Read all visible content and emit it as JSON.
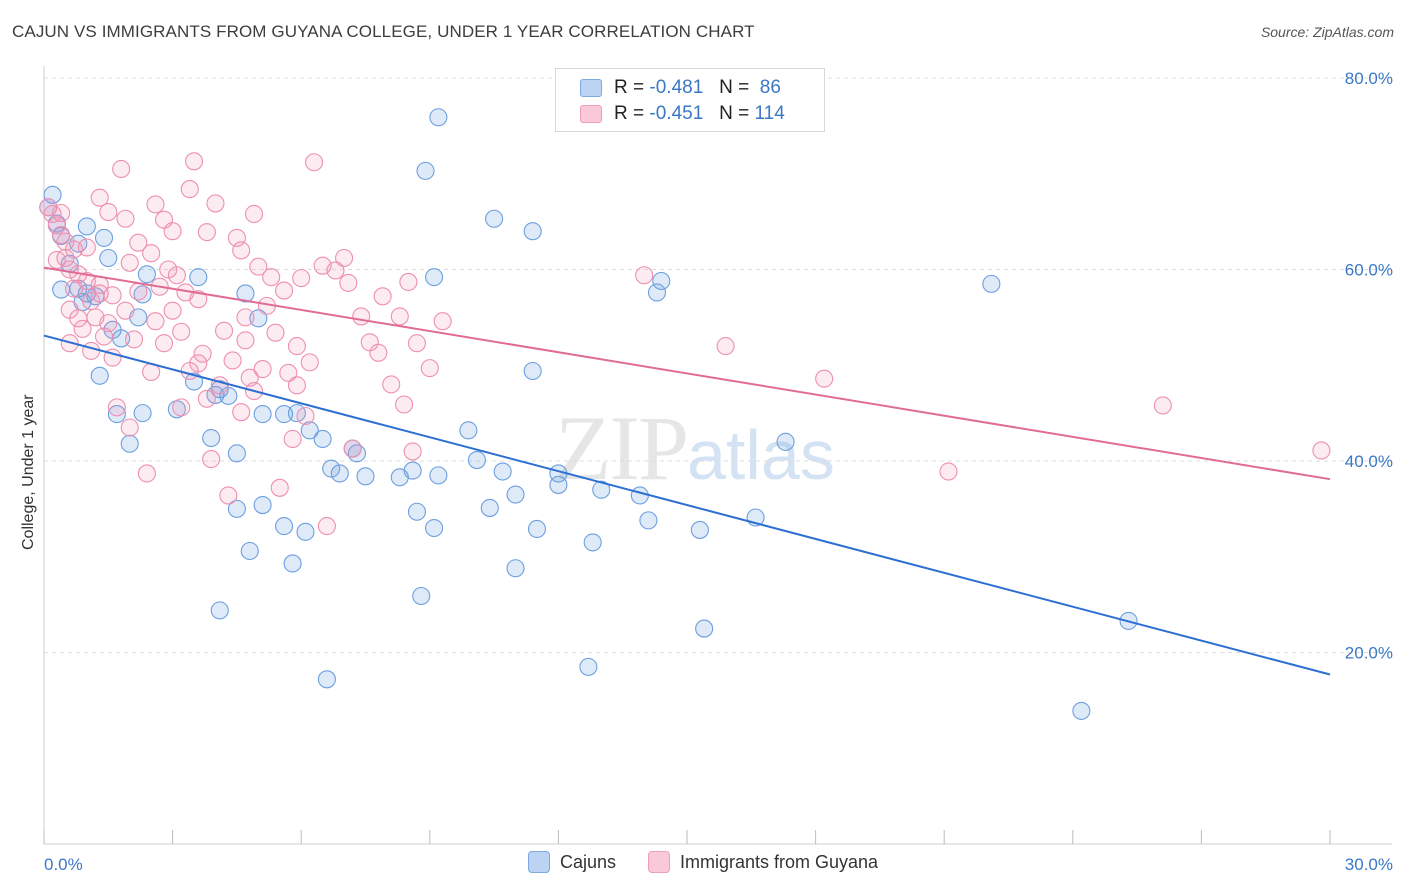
{
  "title": "CAJUN VS IMMIGRANTS FROM GUYANA COLLEGE, UNDER 1 YEAR CORRELATION CHART",
  "source": "Source: ZipAtlas.com",
  "watermark_zip": "ZIP",
  "watermark_atlas": "atlas",
  "legend": {
    "series1": {
      "r_label": "R = ",
      "r_value": "-0.481",
      "n_label": "N = ",
      "n_value": "86"
    },
    "series2": {
      "r_label": "R = ",
      "r_value": "-0.451",
      "n_label": "N = ",
      "n_value": "114"
    }
  },
  "colors": {
    "cajuns": "#6c9fdf",
    "cajuns_line": "#2d6fd1",
    "guyana": "#ee8fb0",
    "guyana_line": "#e06b96",
    "grid": "#dcdcdc",
    "tick": "#3a78c7"
  },
  "chart_data": {
    "type": "scatter",
    "title": "CAJUN VS IMMIGRANTS FROM GUYANA COLLEGE, UNDER 1 YEAR CORRELATION CHART",
    "xlabel": "",
    "ylabel": "College, Under 1 year",
    "xlim": [
      0,
      30
    ],
    "ylim": [
      0,
      80
    ],
    "x_tick_labels": [
      "0.0%",
      "30.0%"
    ],
    "y_tick_labels": [
      "20.0%",
      "40.0%",
      "60.0%",
      "80.0%"
    ],
    "y_ticks": [
      20,
      40,
      60,
      80
    ],
    "grid": true,
    "legend_position": "top-center",
    "series": [
      {
        "name": "Cajuns",
        "color": "#6c9fdf",
        "trend": {
          "x": [
            0,
            30
          ],
          "y": [
            53.1,
            17.7
          ]
        },
        "points": [
          [
            0.2,
            67.8
          ],
          [
            0.1,
            66.5
          ],
          [
            0.3,
            64.8
          ],
          [
            0.4,
            63.5
          ],
          [
            1.0,
            64.5
          ],
          [
            1.4,
            63.3
          ],
          [
            0.8,
            62.7
          ],
          [
            1.5,
            61.2
          ],
          [
            0.6,
            60.6
          ],
          [
            2.4,
            59.5
          ],
          [
            0.4,
            57.9
          ],
          [
            0.8,
            58.0
          ],
          [
            1.0,
            57.5
          ],
          [
            1.2,
            57.2
          ],
          [
            2.3,
            57.4
          ],
          [
            0.9,
            56.6
          ],
          [
            2.2,
            55.0
          ],
          [
            1.6,
            53.7
          ],
          [
            1.8,
            52.8
          ],
          [
            4.7,
            57.5
          ],
          [
            3.6,
            59.2
          ],
          [
            5.0,
            54.9
          ],
          [
            3.5,
            48.3
          ],
          [
            1.3,
            48.9
          ],
          [
            4.0,
            46.9
          ],
          [
            4.3,
            46.8
          ],
          [
            4.1,
            47.5
          ],
          [
            3.1,
            45.4
          ],
          [
            2.3,
            45.0
          ],
          [
            1.7,
            44.9
          ],
          [
            3.9,
            42.4
          ],
          [
            5.1,
            44.9
          ],
          [
            5.6,
            44.9
          ],
          [
            5.9,
            45.0
          ],
          [
            6.2,
            43.2
          ],
          [
            6.5,
            42.3
          ],
          [
            2.0,
            41.8
          ],
          [
            4.5,
            40.8
          ],
          [
            7.2,
            41.3
          ],
          [
            7.3,
            40.8
          ],
          [
            6.7,
            39.2
          ],
          [
            6.9,
            38.7
          ],
          [
            7.5,
            38.4
          ],
          [
            8.3,
            38.3
          ],
          [
            9.2,
            38.5
          ],
          [
            8.6,
            39.0
          ],
          [
            10.1,
            40.1
          ],
          [
            10.7,
            38.9
          ],
          [
            12.0,
            38.7
          ],
          [
            12.0,
            37.5
          ],
          [
            13.0,
            37.0
          ],
          [
            11.0,
            36.5
          ],
          [
            13.9,
            36.4
          ],
          [
            5.1,
            35.4
          ],
          [
            4.5,
            35.0
          ],
          [
            8.7,
            34.7
          ],
          [
            9.1,
            33.0
          ],
          [
            10.4,
            35.1
          ],
          [
            6.1,
            32.6
          ],
          [
            5.6,
            33.2
          ],
          [
            4.8,
            30.6
          ],
          [
            5.8,
            29.3
          ],
          [
            11.5,
            32.9
          ],
          [
            12.8,
            31.5
          ],
          [
            14.1,
            33.8
          ],
          [
            15.3,
            32.8
          ],
          [
            16.6,
            34.1
          ],
          [
            11.0,
            28.8
          ],
          [
            8.8,
            25.9
          ],
          [
            4.1,
            24.4
          ],
          [
            15.4,
            22.5
          ],
          [
            12.7,
            18.5
          ],
          [
            6.6,
            17.2
          ],
          [
            24.2,
            13.9
          ],
          [
            25.3,
            23.3
          ],
          [
            22.1,
            58.5
          ],
          [
            17.3,
            42.0
          ],
          [
            14.4,
            58.8
          ],
          [
            11.4,
            64.0
          ],
          [
            10.5,
            65.3
          ],
          [
            9.1,
            59.2
          ],
          [
            8.9,
            70.3
          ],
          [
            9.2,
            75.9
          ],
          [
            9.9,
            43.2
          ],
          [
            11.4,
            49.4
          ],
          [
            14.3,
            57.6
          ]
        ]
      },
      {
        "name": "Immigrants from Guyana",
        "color": "#ee8fb0",
        "trend": {
          "x": [
            0,
            30
          ],
          "y": [
            60.2,
            38.1
          ]
        },
        "points": [
          [
            0.1,
            66.5
          ],
          [
            0.2,
            65.8
          ],
          [
            0.3,
            64.6
          ],
          [
            0.4,
            63.6
          ],
          [
            0.5,
            62.9
          ],
          [
            0.7,
            62.1
          ],
          [
            0.5,
            61.2
          ],
          [
            0.6,
            60.0
          ],
          [
            0.8,
            59.5
          ],
          [
            1.0,
            58.8
          ],
          [
            0.7,
            58.0
          ],
          [
            1.3,
            57.5
          ],
          [
            1.1,
            56.7
          ],
          [
            0.6,
            55.8
          ],
          [
            1.2,
            55.0
          ],
          [
            1.5,
            54.4
          ],
          [
            0.9,
            53.8
          ],
          [
            1.4,
            53.0
          ],
          [
            0.6,
            52.3
          ],
          [
            1.1,
            51.5
          ],
          [
            1.6,
            50.8
          ],
          [
            1.3,
            67.5
          ],
          [
            1.5,
            66.0
          ],
          [
            1.9,
            65.3
          ],
          [
            1.8,
            70.5
          ],
          [
            2.6,
            66.8
          ],
          [
            2.8,
            65.2
          ],
          [
            3.0,
            64.0
          ],
          [
            2.2,
            62.8
          ],
          [
            2.5,
            61.7
          ],
          [
            2.0,
            60.7
          ],
          [
            2.9,
            60.0
          ],
          [
            3.1,
            59.4
          ],
          [
            2.7,
            58.2
          ],
          [
            3.3,
            57.6
          ],
          [
            3.6,
            56.9
          ],
          [
            3.0,
            55.7
          ],
          [
            2.6,
            54.6
          ],
          [
            3.2,
            53.5
          ],
          [
            2.8,
            52.3
          ],
          [
            3.7,
            51.2
          ],
          [
            4.4,
            50.5
          ],
          [
            3.4,
            49.4
          ],
          [
            4.8,
            48.7
          ],
          [
            4.1,
            47.9
          ],
          [
            3.8,
            46.5
          ],
          [
            4.6,
            45.1
          ],
          [
            1.7,
            45.6
          ],
          [
            3.5,
            71.3
          ],
          [
            3.4,
            68.4
          ],
          [
            4.0,
            66.9
          ],
          [
            3.8,
            63.9
          ],
          [
            4.5,
            63.3
          ],
          [
            4.6,
            62.0
          ],
          [
            5.0,
            60.3
          ],
          [
            5.3,
            59.2
          ],
          [
            5.6,
            57.8
          ],
          [
            5.2,
            56.2
          ],
          [
            4.7,
            55.0
          ],
          [
            5.4,
            53.4
          ],
          [
            5.9,
            52.0
          ],
          [
            6.2,
            50.3
          ],
          [
            5.7,
            49.2
          ],
          [
            6.5,
            60.4
          ],
          [
            6.8,
            59.9
          ],
          [
            7.1,
            58.6
          ],
          [
            7.4,
            55.1
          ],
          [
            7.9,
            57.2
          ],
          [
            7.6,
            52.4
          ],
          [
            8.3,
            55.1
          ],
          [
            8.1,
            48.0
          ],
          [
            8.4,
            45.9
          ],
          [
            7.8,
            51.3
          ],
          [
            6.1,
            44.7
          ],
          [
            5.5,
            37.2
          ],
          [
            6.6,
            33.2
          ],
          [
            2.4,
            38.7
          ],
          [
            2.0,
            43.5
          ],
          [
            6.3,
            71.2
          ],
          [
            4.9,
            65.8
          ],
          [
            4.7,
            52.6
          ],
          [
            3.9,
            40.2
          ],
          [
            4.3,
            36.4
          ],
          [
            5.9,
            47.9
          ],
          [
            8.5,
            58.7
          ],
          [
            8.7,
            52.3
          ],
          [
            9.3,
            54.6
          ],
          [
            9.0,
            49.7
          ],
          [
            14.0,
            59.4
          ],
          [
            15.9,
            52.0
          ],
          [
            18.2,
            48.6
          ],
          [
            21.1,
            38.9
          ],
          [
            26.1,
            45.8
          ],
          [
            29.8,
            41.1
          ],
          [
            1.0,
            62.3
          ],
          [
            0.4,
            65.9
          ],
          [
            1.6,
            57.3
          ],
          [
            2.2,
            57.7
          ],
          [
            2.5,
            49.3
          ],
          [
            3.2,
            45.6
          ],
          [
            4.2,
            53.6
          ],
          [
            5.1,
            49.6
          ],
          [
            6.0,
            59.1
          ],
          [
            7.0,
            61.2
          ],
          [
            0.3,
            61.0
          ],
          [
            1.3,
            58.4
          ],
          [
            0.8,
            54.9
          ],
          [
            1.9,
            55.7
          ],
          [
            2.1,
            52.7
          ],
          [
            3.6,
            50.2
          ],
          [
            4.9,
            47.3
          ],
          [
            5.8,
            42.3
          ],
          [
            7.2,
            41.3
          ],
          [
            8.6,
            41.0
          ]
        ]
      }
    ]
  }
}
